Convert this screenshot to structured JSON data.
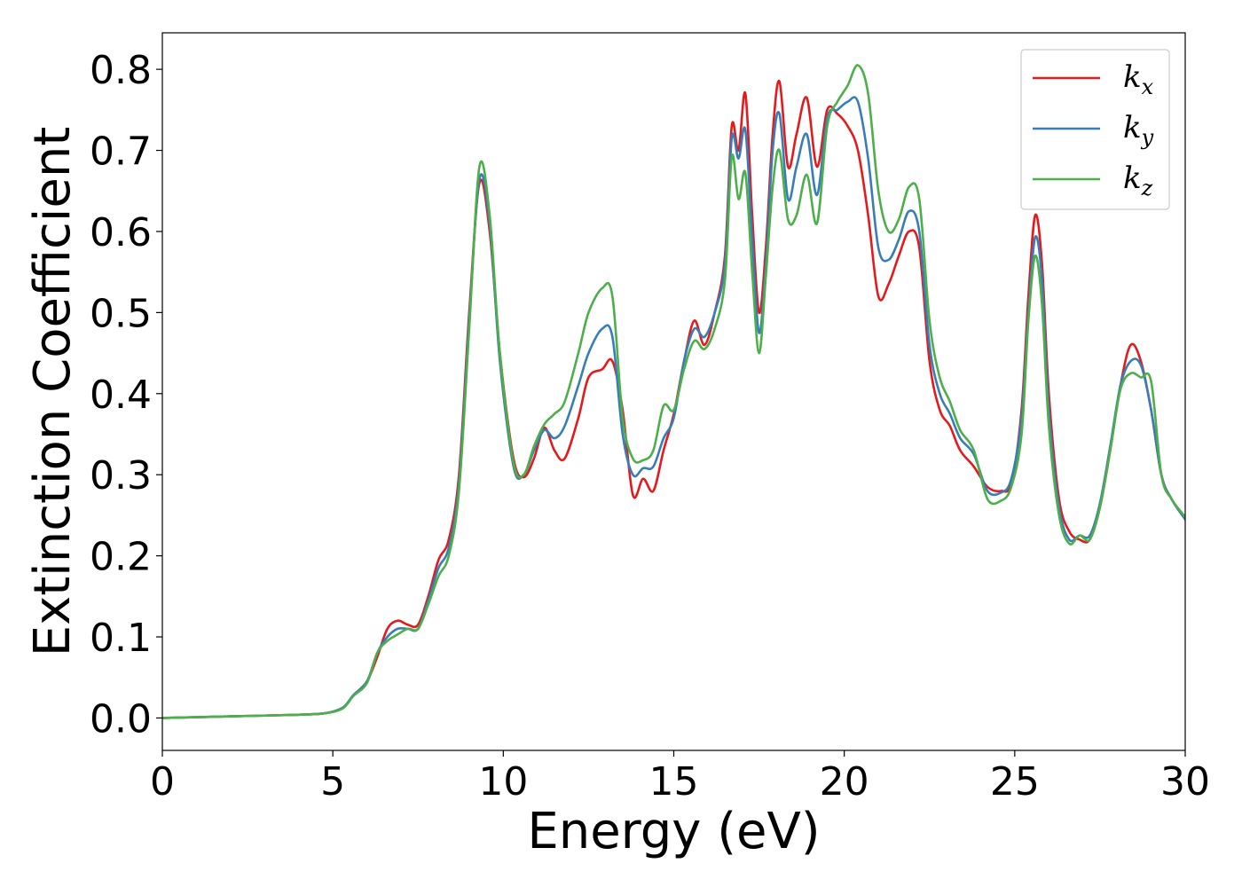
{
  "chart_data": {
    "type": "line",
    "title": "",
    "xlabel": "Energy (eV)",
    "ylabel": "Extinction Coefficient",
    "xlim": [
      0,
      30
    ],
    "ylim": [
      -0.04,
      0.845
    ],
    "xticks": [
      0,
      5,
      10,
      15,
      20,
      25,
      30
    ],
    "xtick_labels": [
      "0",
      "5",
      "10",
      "15",
      "20",
      "25",
      "30"
    ],
    "yticks": [
      0.0,
      0.1,
      0.2,
      0.3,
      0.4,
      0.5,
      0.6,
      0.7,
      0.8
    ],
    "ytick_labels": [
      "0.0",
      "0.1",
      "0.2",
      "0.3",
      "0.4",
      "0.5",
      "0.6",
      "0.7",
      "0.8"
    ],
    "grid": false,
    "legend_position": "top-right",
    "series": [
      {
        "name": "k_x",
        "label_base": "k",
        "label_sub": "x",
        "color": "#e41a1c",
        "x": [
          0,
          2,
          4,
          4.8,
          5.3,
          5.6,
          6.0,
          6.3,
          6.6,
          6.9,
          7.2,
          7.5,
          7.8,
          8.1,
          8.4,
          8.7,
          9.0,
          9.3,
          9.6,
          9.9,
          10.3,
          10.6,
          10.9,
          11.2,
          11.5,
          11.8,
          12.2,
          12.5,
          12.9,
          13.2,
          13.5,
          13.8,
          14.1,
          14.4,
          14.7,
          15.0,
          15.3,
          15.6,
          15.9,
          16.2,
          16.5,
          16.7,
          16.9,
          17.1,
          17.3,
          17.5,
          17.7,
          17.9,
          18.1,
          18.35,
          18.6,
          18.9,
          19.2,
          19.5,
          19.8,
          20.1,
          20.4,
          20.7,
          21.0,
          21.3,
          21.6,
          21.9,
          22.2,
          22.5,
          22.8,
          23.1,
          23.4,
          23.8,
          24.2,
          24.6,
          24.9,
          25.2,
          25.4,
          25.6,
          25.8,
          26.0,
          26.3,
          26.6,
          26.9,
          27.2,
          27.5,
          27.8,
          28.1,
          28.4,
          28.7,
          29.0,
          29.3,
          29.6,
          30
        ],
        "y": [
          0,
          0.002,
          0.004,
          0.006,
          0.013,
          0.028,
          0.045,
          0.075,
          0.11,
          0.12,
          0.115,
          0.115,
          0.15,
          0.195,
          0.22,
          0.3,
          0.5,
          0.66,
          0.6,
          0.45,
          0.32,
          0.297,
          0.32,
          0.358,
          0.33,
          0.32,
          0.37,
          0.42,
          0.43,
          0.44,
          0.38,
          0.275,
          0.295,
          0.28,
          0.33,
          0.375,
          0.44,
          0.49,
          0.46,
          0.5,
          0.57,
          0.73,
          0.7,
          0.77,
          0.62,
          0.5,
          0.58,
          0.72,
          0.785,
          0.68,
          0.72,
          0.765,
          0.68,
          0.75,
          0.745,
          0.73,
          0.7,
          0.62,
          0.52,
          0.535,
          0.57,
          0.6,
          0.58,
          0.44,
          0.38,
          0.36,
          0.33,
          0.31,
          0.285,
          0.28,
          0.29,
          0.38,
          0.52,
          0.62,
          0.56,
          0.4,
          0.27,
          0.23,
          0.22,
          0.22,
          0.26,
          0.33,
          0.41,
          0.46,
          0.44,
          0.38,
          0.3,
          0.27,
          0.245
        ]
      },
      {
        "name": "k_y",
        "label_base": "k",
        "label_sub": "y",
        "color": "#377eb8",
        "x": [
          0,
          2,
          4,
          4.8,
          5.3,
          5.6,
          6.0,
          6.3,
          6.6,
          6.9,
          7.2,
          7.5,
          7.8,
          8.1,
          8.4,
          8.7,
          9.0,
          9.3,
          9.6,
          9.9,
          10.3,
          10.6,
          10.9,
          11.2,
          11.5,
          11.8,
          12.2,
          12.5,
          12.9,
          13.2,
          13.5,
          13.8,
          14.1,
          14.4,
          14.7,
          15.0,
          15.3,
          15.6,
          15.9,
          16.2,
          16.5,
          16.7,
          16.9,
          17.1,
          17.3,
          17.5,
          17.7,
          17.9,
          18.1,
          18.35,
          18.6,
          18.9,
          19.2,
          19.5,
          19.8,
          20.1,
          20.4,
          20.7,
          21.0,
          21.3,
          21.6,
          21.9,
          22.2,
          22.5,
          22.8,
          23.1,
          23.4,
          23.8,
          24.2,
          24.6,
          24.9,
          25.2,
          25.4,
          25.6,
          25.8,
          26.0,
          26.3,
          26.6,
          26.9,
          27.2,
          27.5,
          27.8,
          28.1,
          28.4,
          28.7,
          29.0,
          29.3,
          29.6,
          30
        ],
        "y": [
          0,
          0.002,
          0.004,
          0.006,
          0.013,
          0.028,
          0.045,
          0.08,
          0.1,
          0.11,
          0.11,
          0.11,
          0.145,
          0.185,
          0.21,
          0.29,
          0.49,
          0.665,
          0.61,
          0.44,
          0.31,
          0.3,
          0.33,
          0.355,
          0.345,
          0.36,
          0.41,
          0.45,
          0.48,
          0.47,
          0.35,
          0.3,
          0.308,
          0.31,
          0.345,
          0.37,
          0.44,
          0.48,
          0.47,
          0.5,
          0.56,
          0.715,
          0.69,
          0.725,
          0.59,
          0.475,
          0.56,
          0.7,
          0.745,
          0.64,
          0.68,
          0.72,
          0.645,
          0.74,
          0.75,
          0.76,
          0.76,
          0.69,
          0.58,
          0.565,
          0.59,
          0.625,
          0.6,
          0.46,
          0.4,
          0.375,
          0.345,
          0.325,
          0.28,
          0.278,
          0.295,
          0.37,
          0.5,
          0.593,
          0.54,
          0.38,
          0.26,
          0.22,
          0.225,
          0.225,
          0.265,
          0.335,
          0.41,
          0.44,
          0.435,
          0.38,
          0.3,
          0.27,
          0.245
        ]
      },
      {
        "name": "k_z",
        "label_base": "k",
        "label_sub": "z",
        "color": "#4daf4a",
        "x": [
          0,
          2,
          4,
          4.8,
          5.3,
          5.6,
          6.0,
          6.3,
          6.6,
          6.9,
          7.2,
          7.5,
          7.8,
          8.1,
          8.4,
          8.7,
          9.0,
          9.3,
          9.6,
          9.9,
          10.3,
          10.6,
          10.9,
          11.2,
          11.5,
          11.8,
          12.2,
          12.5,
          12.9,
          13.2,
          13.5,
          13.8,
          14.1,
          14.4,
          14.7,
          15.0,
          15.3,
          15.6,
          15.9,
          16.2,
          16.5,
          16.7,
          16.9,
          17.1,
          17.3,
          17.5,
          17.7,
          17.9,
          18.1,
          18.35,
          18.6,
          18.9,
          19.2,
          19.5,
          19.8,
          20.1,
          20.4,
          20.7,
          21.0,
          21.3,
          21.6,
          21.9,
          22.2,
          22.5,
          22.8,
          23.1,
          23.4,
          23.8,
          24.2,
          24.6,
          24.9,
          25.2,
          25.4,
          25.6,
          25.8,
          26.0,
          26.3,
          26.6,
          26.9,
          27.2,
          27.5,
          27.8,
          28.1,
          28.4,
          28.7,
          29.0,
          29.3,
          29.6,
          30
        ],
        "y": [
          0,
          0.002,
          0.004,
          0.006,
          0.012,
          0.027,
          0.043,
          0.08,
          0.095,
          0.103,
          0.11,
          0.11,
          0.14,
          0.175,
          0.2,
          0.28,
          0.48,
          0.68,
          0.62,
          0.45,
          0.315,
          0.3,
          0.335,
          0.362,
          0.375,
          0.39,
          0.45,
          0.5,
          0.53,
          0.52,
          0.37,
          0.32,
          0.318,
          0.33,
          0.385,
          0.38,
          0.43,
          0.465,
          0.455,
          0.48,
          0.54,
          0.692,
          0.64,
          0.672,
          0.55,
          0.45,
          0.545,
          0.655,
          0.7,
          0.615,
          0.62,
          0.67,
          0.61,
          0.73,
          0.76,
          0.78,
          0.805,
          0.77,
          0.65,
          0.6,
          0.615,
          0.655,
          0.64,
          0.49,
          0.42,
          0.39,
          0.355,
          0.33,
          0.27,
          0.268,
          0.285,
          0.35,
          0.49,
          0.57,
          0.51,
          0.36,
          0.25,
          0.215,
          0.225,
          0.22,
          0.26,
          0.33,
          0.405,
          0.425,
          0.42,
          0.415,
          0.3,
          0.27,
          0.248
        ]
      }
    ]
  }
}
